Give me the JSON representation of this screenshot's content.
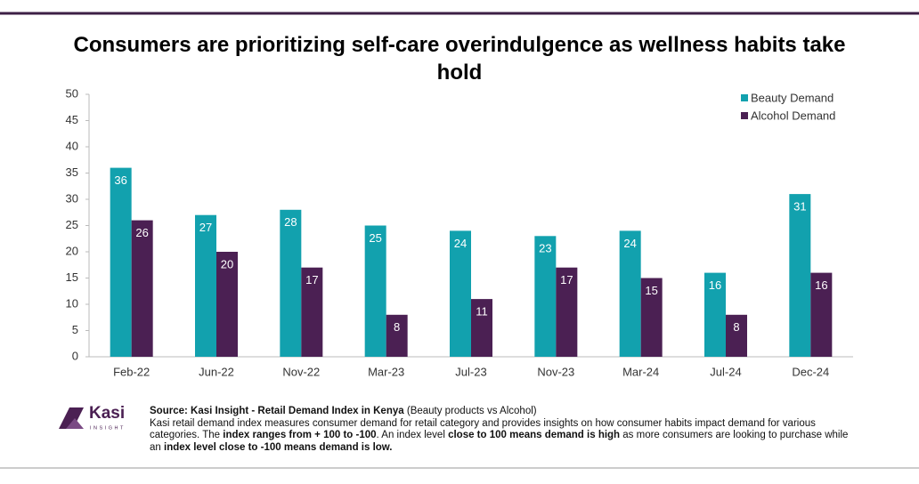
{
  "chart_data": {
    "type": "bar",
    "title": "Consumers are prioritizing self-care overindulgence as wellness habits take hold",
    "categories": [
      "Feb-22",
      "Jun-22",
      "Nov-22",
      "Mar-23",
      "Jul-23",
      "Nov-23",
      "Mar-24",
      "Jul-24",
      "Dec-24"
    ],
    "series": [
      {
        "name": "Beauty Demand",
        "color": "#12a1ae",
        "values": [
          36,
          27,
          28,
          25,
          24,
          23,
          24,
          16,
          31
        ]
      },
      {
        "name": "Alcohol Demand",
        "color": "#4b2053",
        "values": [
          26,
          20,
          17,
          8,
          11,
          17,
          15,
          8,
          16
        ]
      }
    ],
    "ylim": [
      0,
      50
    ],
    "yticks": [
      0,
      5,
      10,
      15,
      20,
      25,
      30,
      35,
      40,
      45,
      50
    ],
    "grid": false,
    "legend": "top-right",
    "data_labels": true
  },
  "footer": {
    "logo": {
      "name": "Kasi",
      "tagline": "INSIGHT"
    },
    "source": {
      "bold": "Source: Kasi Insight  -  Retail Demand Index in Kenya",
      "normal": "(Beauty products vs Alcohol)"
    },
    "note": [
      "Kasi retail demand index measures consumer demand for retail category and provides insights on how consumer habits impact demand for various categories. The ",
      "index ranges from + 100 to -100",
      ". An index level ",
      "close to 100 means demand is high",
      " as more consumers are looking to purchase while an ",
      "index level close to -100 means demand is low."
    ]
  }
}
